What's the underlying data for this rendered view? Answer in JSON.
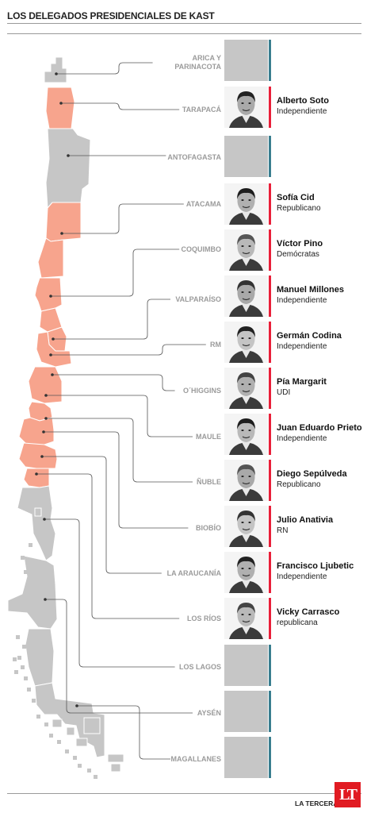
{
  "title": "LOS DELEGADOS PRESIDENCIALES DE KAST",
  "colors": {
    "region_with_delegate": "#f7a48d",
    "region_without_delegate": "#c6c6c6",
    "bar_with_delegate": "#e8203a",
    "bar_without_delegate": "#3a7e8f"
  },
  "regions": [
    {
      "id": "arica",
      "label": "ARICA Y PARINACOTA",
      "label_lines": [
        "ARICA Y",
        "PARINACOTA"
      ],
      "delegate": null
    },
    {
      "id": "tarapaca",
      "label": "TARAPACÁ",
      "delegate": {
        "name": "Alberto Soto",
        "party": "Independiente"
      }
    },
    {
      "id": "antofagasta",
      "label": "ANTOFAGASTA",
      "delegate": null
    },
    {
      "id": "atacama",
      "label": "ATACAMA",
      "delegate": {
        "name": "Sofía Cid",
        "party": "Republicano"
      }
    },
    {
      "id": "coquimbo",
      "label": "COQUIMBO",
      "delegate": {
        "name": "Víctor Pino",
        "party": "Demócratas"
      }
    },
    {
      "id": "valparaiso",
      "label": "VALPARAÍSO",
      "delegate": {
        "name": "Manuel Millones",
        "party": "Independiente"
      }
    },
    {
      "id": "rm",
      "label": "RM",
      "delegate": {
        "name": "Germán Codina",
        "party": "Independiente"
      }
    },
    {
      "id": "ohiggins",
      "label": "O´HIGGINS",
      "delegate": {
        "name": "Pía Margarit",
        "party": "UDI"
      }
    },
    {
      "id": "maule",
      "label": "MAULE",
      "delegate": {
        "name": "Juan Eduardo Prieto",
        "party": "Independiente"
      }
    },
    {
      "id": "nuble",
      "label": "ÑUBLE",
      "delegate": {
        "name": "Diego Sepúlveda",
        "party": "Republicano"
      }
    },
    {
      "id": "biobio",
      "label": "BIOBÍO",
      "delegate": {
        "name": "Julio Anativia",
        "party": "RN"
      }
    },
    {
      "id": "araucania",
      "label": "LA ARAUCANÍA",
      "delegate": {
        "name": "Francisco Ljubetic",
        "party": "Independiente"
      }
    },
    {
      "id": "losrios",
      "label": "LOS RÍOS",
      "delegate": {
        "name": "Vicky Carrasco",
        "party": "republicana"
      }
    },
    {
      "id": "loslagos",
      "label": "LOS LAGOS",
      "delegate": null
    },
    {
      "id": "aysen",
      "label": "AYSÉN",
      "delegate": null
    },
    {
      "id": "magallanes",
      "label": "MAGALLANES",
      "delegate": null
    }
  ],
  "footer": {
    "brand": "LA TERCERA",
    "logo": "LT"
  }
}
